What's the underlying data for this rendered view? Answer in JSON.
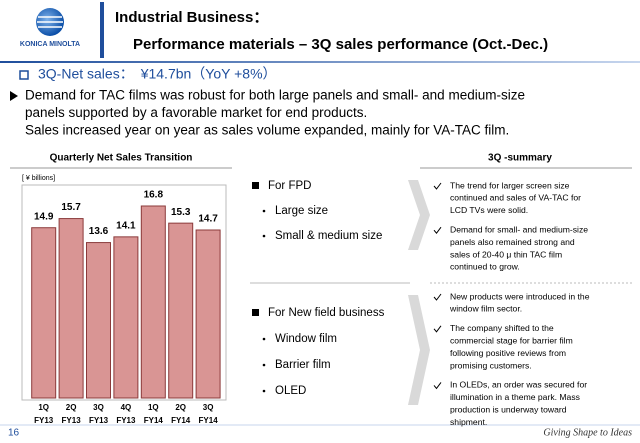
{
  "header": {
    "title_line1": "Industrial Business：",
    "title_line2": "Performance materials – 3Q sales performance (Oct.-Dec.)",
    "logo": "KONICA MINOLTA"
  },
  "headline": "3Q-Net sales：　¥14.7bn（YoY +8%）",
  "intro": [
    "Demand for TAC films was robust for both large panels and small- and medium-size",
    "panels supported by a favorable market for end products.",
    "Sales increased year on year as sales volume expanded, mainly for VA-TAC film."
  ],
  "chart_data": {
    "type": "bar",
    "title": "Quarterly Net Sales Transition",
    "unit_label": "[ ¥ billions]",
    "categories": [
      "1Q",
      "2Q",
      "3Q",
      "4Q",
      "1Q",
      "2Q",
      "3Q"
    ],
    "category_years": [
      "FY13",
      "FY13",
      "FY13",
      "FY13",
      "FY14",
      "FY14",
      "FY14"
    ],
    "values": [
      14.9,
      15.7,
      13.6,
      14.1,
      16.8,
      15.3,
      14.7
    ],
    "color": "#d99594",
    "ylim": [
      0,
      17.5
    ]
  },
  "summary": {
    "title": "3Q -summary",
    "groups": [
      {
        "heading": "For FPD",
        "items": [
          "Large size",
          "Small & medium size"
        ],
        "notes": [
          [
            "The trend for larger screen size",
            "continued and sales of VA-TAC for",
            "LCD TVs were solid."
          ],
          [
            "Demand for small- and medium-size",
            "panels also remained strong and",
            "sales of 20-40 μ thin TAC film",
            "continued to grow."
          ]
        ]
      },
      {
        "heading": "For New field business",
        "items": [
          "Window film",
          "Barrier film",
          "OLED"
        ],
        "notes": [
          [
            "New products were introduced in the",
            "window film sector."
          ],
          [
            "The company shifted to the",
            "commercial stage for barrier film",
            "following positive reviews from",
            "promising customers."
          ],
          [
            "In OLEDs, an order was secured for",
            "illumination in a theme park. Mass",
            "production is underway toward",
            "shipment."
          ]
        ]
      }
    ]
  },
  "footer": {
    "page": "16",
    "tagline": "Giving Shape to Ideas"
  }
}
